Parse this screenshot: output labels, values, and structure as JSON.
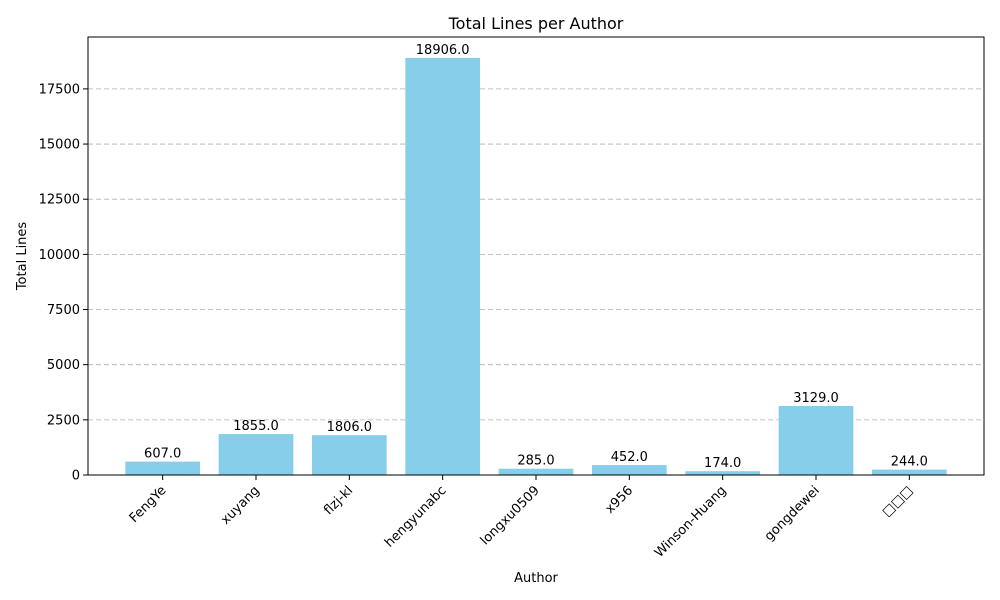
{
  "chart_data": {
    "type": "bar",
    "title": "Total Lines per Author",
    "xlabel": "Author",
    "ylabel": "Total Lines",
    "categories": [
      "FengYe",
      "xuyang",
      "flzj-kl",
      "hengyunabc",
      "longxu0509",
      "x956",
      "Winson-Huang",
      "gongdewei",
      "□□□"
    ],
    "values": [
      607.0,
      1855.0,
      1806.0,
      18906.0,
      285.0,
      452.0,
      174.0,
      3129.0,
      244.0
    ],
    "data_labels": [
      "607.0",
      "1855.0",
      "1806.0",
      "18906.0",
      "285.0",
      "452.0",
      "174.0",
      "3129.0",
      "244.0"
    ],
    "ylim": [
      0,
      19852
    ],
    "yticks": [
      0,
      2500,
      5000,
      7500,
      10000,
      12500,
      15000,
      17500
    ],
    "ytick_labels": [
      "0",
      "2500",
      "5000",
      "7500",
      "10000",
      "12500",
      "15000",
      "17500"
    ],
    "grid": "y-dashed",
    "bar_color": "#87CEEB"
  }
}
